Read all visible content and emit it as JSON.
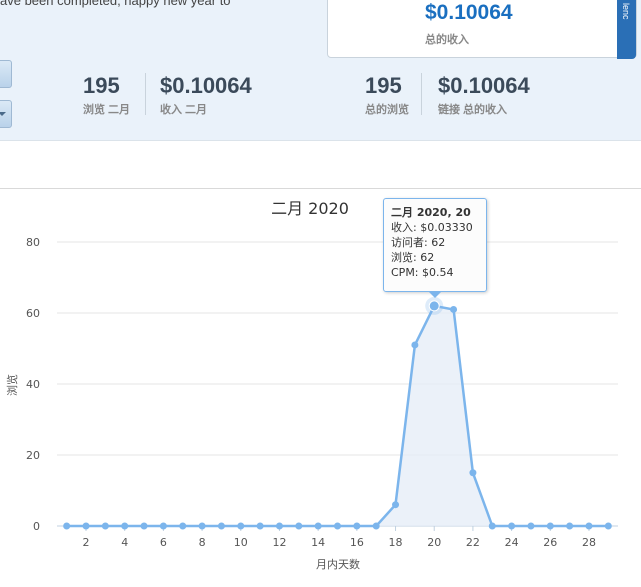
{
  "notice": "ave been completed, happy new year to",
  "total_card": {
    "value": "$0.10064",
    "label": "总的收入",
    "tab_text": "lenc"
  },
  "stats": [
    {
      "value": "195",
      "label": "浏览 二月"
    },
    {
      "value": "$0.10064",
      "label": "收入 二月"
    },
    {
      "value": "195",
      "label": "总的浏览"
    },
    {
      "value": "$0.10064",
      "label": "链接 总的收入"
    }
  ],
  "tooltip": {
    "title": "二月 2020, 20",
    "lines": [
      "收入: $0.03330",
      "访问者: 62",
      "浏览: 62",
      "CPM: $0.54"
    ]
  },
  "colors": {
    "accent": "#1a6fc0",
    "series": "#7cb5ec",
    "fill": "#e6eef8"
  },
  "chart_data": {
    "type": "area",
    "title": "二月 2020",
    "xlabel": "月内天数",
    "ylabel": "浏览",
    "xlim": [
      1,
      29
    ],
    "ylim": [
      0,
      80
    ],
    "yticks": [
      0,
      20,
      40,
      60,
      80
    ],
    "xticks": [
      2,
      4,
      6,
      8,
      10,
      12,
      14,
      16,
      18,
      20,
      22,
      24,
      26,
      28
    ],
    "grid": true,
    "highlight_x": 20,
    "x": [
      1,
      2,
      3,
      4,
      5,
      6,
      7,
      8,
      9,
      10,
      11,
      12,
      13,
      14,
      15,
      16,
      17,
      18,
      19,
      20,
      21,
      22,
      23,
      24,
      25,
      26,
      27,
      28,
      29
    ],
    "series": [
      {
        "values": [
          0,
          0,
          0,
          0,
          0,
          0,
          0,
          0,
          0,
          0,
          0,
          0,
          0,
          0,
          0,
          0,
          0,
          6,
          51,
          62,
          61,
          15,
          0,
          0,
          0,
          0,
          0,
          0,
          0
        ]
      }
    ]
  }
}
